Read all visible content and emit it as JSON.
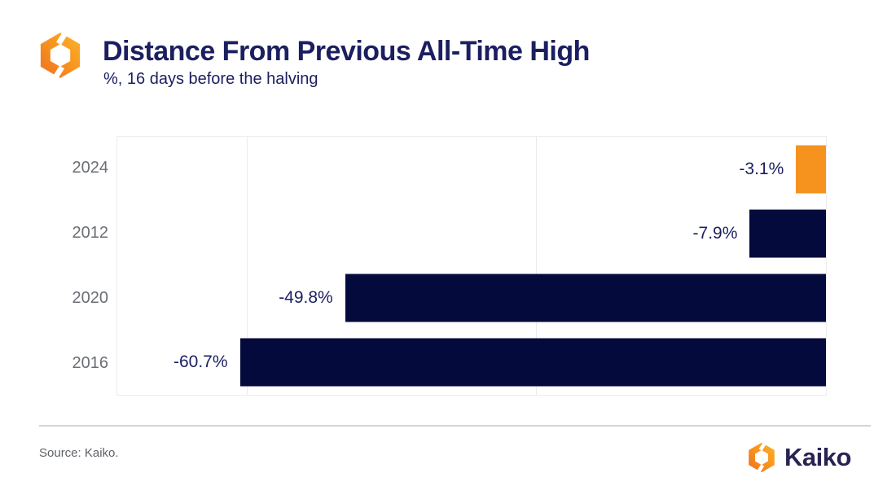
{
  "header": {
    "title": "Distance From Previous All-Time High",
    "subtitle": "%, 16 days before the halving",
    "logo_icon": "kaiko-logo-icon"
  },
  "chart_data": {
    "type": "bar",
    "orientation": "horizontal",
    "title": "Distance From Previous All-Time High",
    "subtitle": "%, 16 days before the halving",
    "categories": [
      "2024",
      "2012",
      "2020",
      "2016"
    ],
    "values": [
      -3.1,
      -7.9,
      -49.8,
      -60.7
    ],
    "value_labels": [
      "-3.1%",
      "-7.9%",
      "-49.8%",
      "-60.7%"
    ],
    "bar_colors": [
      "#F6921E",
      "#050A3C",
      "#050A3C",
      "#050A3C"
    ],
    "xlim": [
      -73.4,
      0
    ],
    "gridlines_x": [
      -60,
      -30
    ],
    "xlabel": "",
    "ylabel": "",
    "grid": "vertical-only",
    "legend": "none"
  },
  "footer": {
    "source": "Source: Kaiko.",
    "brand_name": "Kaiko",
    "brand_icon": "kaiko-logo-icon"
  },
  "colors": {
    "accent_orange": "#F6921E",
    "bar_navy": "#050A3C",
    "text_navy": "#1B1F60",
    "axis_gray": "#6B6E74",
    "gridline_gray": "#EBEBEE"
  }
}
